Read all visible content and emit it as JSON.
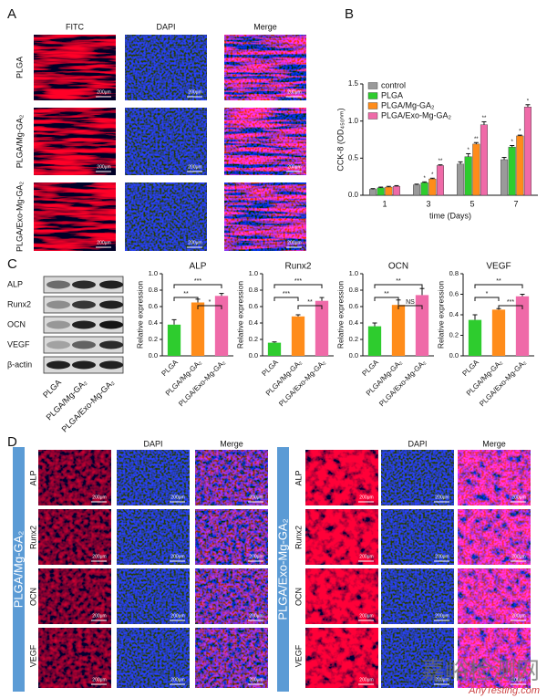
{
  "panel_labels": [
    "A",
    "B",
    "C",
    "D"
  ],
  "panel_a": {
    "columns": [
      "FITC",
      "DAPI",
      "Merge"
    ],
    "rows": [
      "PLGA",
      "PLGA/Mg-GA₂",
      "PLGA/Exo-Mg-GA₂"
    ],
    "scale_bar": "200μm"
  },
  "panel_c_blot": {
    "proteins": [
      "ALP",
      "Runx2",
      "OCN",
      "VEGF",
      "β-actin"
    ],
    "groups": [
      "PLGA",
      "PLGA/Mg-GA₂",
      "PLGA/Exo-Mg-GA₂"
    ]
  },
  "panel_d": {
    "columns": [
      "DAPI",
      "Merge"
    ],
    "rows": [
      "ALP",
      "Runx2",
      "OCN",
      "VEGF"
    ],
    "groups": [
      "PLGA/Mg-GA₂",
      "PLGA/Exo-Mg-GA₂"
    ],
    "scale_bar": "200μm"
  },
  "watermark": {
    "text": "嘉峪检测网",
    "url": "AnyTesting.com"
  },
  "chart_data": [
    {
      "type": "bar",
      "y_label": "CCK-8 (OD₄₅₀ₙₘ)",
      "x_label": "time (Days)",
      "categories": [
        "1",
        "3",
        "5",
        "7"
      ],
      "series": [
        {
          "name": "control",
          "color": "#9a9a9a",
          "values": [
            0.08,
            0.14,
            0.42,
            0.48
          ],
          "errors": [
            0.01,
            0.01,
            0.03,
            0.03
          ],
          "significance": [
            null,
            null,
            null,
            null
          ]
        },
        {
          "name": "PLGA",
          "color": "#2ecc2e",
          "values": [
            0.1,
            0.17,
            0.52,
            0.65
          ],
          "errors": [
            0.01,
            0.01,
            0.04,
            0.02
          ],
          "significance": [
            null,
            "*",
            "*",
            "*"
          ]
        },
        {
          "name": "PLGA/Mg-GA₂",
          "color": "#ff8c1a",
          "values": [
            0.11,
            0.22,
            0.69,
            0.8
          ],
          "errors": [
            0.01,
            0.01,
            0.02,
            0.01
          ],
          "significance": [
            null,
            "*",
            "**",
            "*"
          ]
        },
        {
          "name": "PLGA/Exo-Mg-GA₂",
          "color": "#ef6aa8",
          "values": [
            0.12,
            0.4,
            0.95,
            1.19
          ],
          "errors": [
            0.01,
            0.01,
            0.04,
            0.03
          ],
          "significance": [
            null,
            "**",
            "**",
            "*"
          ]
        }
      ],
      "ylim": [
        0,
        1.5
      ],
      "yticks": [
        {
          "value": 0,
          "label": "0.0"
        },
        {
          "value": 0.5,
          "label": "0.5"
        },
        {
          "value": 1,
          "label": "1.0"
        },
        {
          "value": 1.5,
          "label": "1.5"
        }
      ],
      "legend": "top-left"
    },
    {
      "type": "bar",
      "title": "ALP",
      "y_label": "Relative expression",
      "categories": [
        "PLGA",
        "PLGA/Mg-GA₂",
        "PLGA/Exo-Mg-GA₂"
      ],
      "colors": [
        "#2ecc2e",
        "#ff8c1a",
        "#ef6aa8"
      ],
      "values": [
        0.38,
        0.65,
        0.73
      ],
      "errors": [
        0.06,
        0.04,
        0.03
      ],
      "brackets": [
        {
          "span": [
            0,
            2
          ],
          "label": "***"
        },
        {
          "span": [
            0,
            1
          ],
          "label": "**"
        },
        {
          "span": [
            1,
            2
          ],
          "label": "*"
        }
      ],
      "ylim": [
        0,
        1
      ],
      "yticks": [
        {
          "value": 0,
          "label": "0.0"
        },
        0.2,
        0.4,
        0.6,
        0.8,
        {
          "value": 1,
          "label": "1.0"
        }
      ]
    },
    {
      "type": "bar",
      "title": "Runx2",
      "y_label": "Relative expression",
      "categories": [
        "PLGA",
        "PLGA/Mg-GA₂",
        "PLGA/Exo-Mg-GA₂"
      ],
      "colors": [
        "#2ecc2e",
        "#ff8c1a",
        "#ef6aa8"
      ],
      "values": [
        0.16,
        0.48,
        0.67
      ],
      "errors": [
        0.01,
        0.02,
        0.04
      ],
      "brackets": [
        {
          "span": [
            0,
            2
          ],
          "label": "***"
        },
        {
          "span": [
            0,
            1
          ],
          "label": "***"
        },
        {
          "span": [
            1,
            2
          ],
          "label": "**"
        }
      ],
      "ylim": [
        0,
        1
      ],
      "yticks": [
        {
          "value": 0,
          "label": "0.0"
        },
        0.2,
        0.4,
        0.6,
        0.8,
        {
          "value": 1,
          "label": "1.0"
        }
      ]
    },
    {
      "type": "bar",
      "title": "OCN",
      "y_label": "Relative expression",
      "categories": [
        "PLGA",
        "PLGA/Mg-GA₂",
        "PLGA/Exo-Mg-GA₂"
      ],
      "colors": [
        "#2ecc2e",
        "#ff8c1a",
        "#ef6aa8"
      ],
      "values": [
        0.36,
        0.62,
        0.74
      ],
      "errors": [
        0.04,
        0.06,
        0.08
      ],
      "brackets": [
        {
          "span": [
            0,
            2
          ],
          "label": "**"
        },
        {
          "span": [
            0,
            1
          ],
          "label": "**"
        },
        {
          "span": [
            1,
            2
          ],
          "label": "NS"
        }
      ],
      "ylim": [
        0,
        1
      ],
      "yticks": [
        {
          "value": 0,
          "label": "0.0"
        },
        0.2,
        0.4,
        0.6,
        0.8,
        {
          "value": 1,
          "label": "1.0"
        }
      ]
    },
    {
      "type": "bar",
      "title": "VEGF",
      "y_label": "Relative expression",
      "categories": [
        "PLGA",
        "PLGA/Mg-GA₂",
        "PLGA/Exo-Mg-GA₂"
      ],
      "colors": [
        "#2ecc2e",
        "#ff8c1a",
        "#ef6aa8"
      ],
      "values": [
        0.35,
        0.45,
        0.58
      ],
      "errors": [
        0.05,
        0.01,
        0.02
      ],
      "brackets": [
        {
          "span": [
            0,
            2
          ],
          "label": "**"
        },
        {
          "span": [
            0,
            1
          ],
          "label": "*"
        },
        {
          "span": [
            1,
            2
          ],
          "label": "***"
        }
      ],
      "ylim": [
        0,
        0.8
      ],
      "yticks": [
        {
          "value": 0,
          "label": "0.0"
        },
        0.2,
        0.4,
        0.6,
        0.8
      ]
    }
  ]
}
